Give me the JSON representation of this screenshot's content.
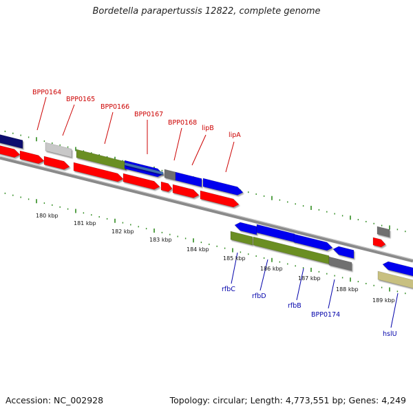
{
  "title": "Bordetella parapertussis 12822, complete genome",
  "footer": {
    "accession": "Accession: NC_002928",
    "summary": "Topology: circular; Length: 4,773,551 bp; Genes: 4,249"
  },
  "colors": {
    "backbone": "#8a8a8a",
    "ticks": "#2e8b1e",
    "forward_label": "#cc0000",
    "reverse_label": "#0000aa",
    "red": "#ff0000",
    "blue": "#0000ee",
    "navy": "#0a0a6e",
    "green": "#6b8e23",
    "gray": "#6f6f6f",
    "lightgray": "#c8c8c8",
    "steelblue": "#3d6fb3",
    "khaki": "#c8c080"
  },
  "kbp_labels": [
    "180 kbp",
    "181 kbp",
    "182 kbp",
    "183 kbp",
    "184 kbp",
    "185 kbp",
    "186 kbp",
    "187 kbp",
    "188 kbp",
    "189 kbp"
  ],
  "forward_tags": [
    "BPP0164",
    "BPP0165",
    "BPP0166",
    "BPP0167",
    "BPP0168",
    "lipB",
    "lipA"
  ],
  "reverse_tags": [
    "rfbC",
    "rfbD",
    "rfbB",
    "BPP0174",
    "hslU"
  ]
}
